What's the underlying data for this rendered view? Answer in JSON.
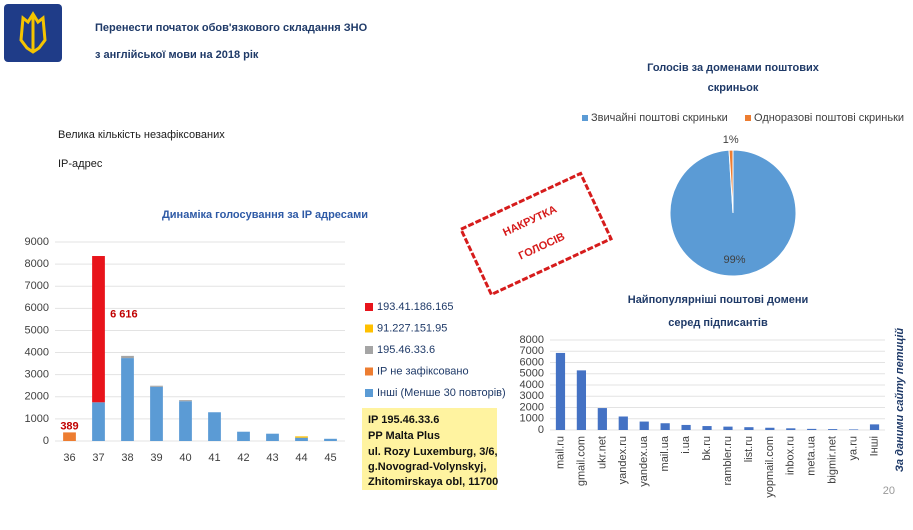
{
  "slide": {
    "title": [
      "Перенести початок обов'язкового складання ЗНО",
      "з англійської мови на 2018 рік"
    ],
    "subtitle": [
      "Велика кількість незафіксованих",
      "IP-адрес"
    ],
    "stamp": [
      "НАКРУТКА",
      "ГОЛОСІВ"
    ],
    "info_box": [
      "IP 195.46.33.6",
      "PP Malta Plus",
      "ul. Rozy Luxemburg, 3/6,",
      "g.Novograd-Volynskyj,",
      "Zhitomirskaya obl, 11700"
    ],
    "side_note": "За даними сайту петицій",
    "page_number": "20"
  },
  "chart_data": [
    {
      "type": "stacked-bar",
      "title": "Динаміка голосування за IP адресами",
      "categories": [
        "36",
        "37",
        "38",
        "39",
        "40",
        "41",
        "42",
        "43",
        "44",
        "45"
      ],
      "series": [
        {
          "name": "Інші (Менше 30 повторів)",
          "color": "#5b9bd5",
          "values": [
            0,
            1750,
            3750,
            2450,
            1800,
            1300,
            420,
            330,
            150,
            100
          ]
        },
        {
          "name": "IP не зафікcовано",
          "color": "#ed7d31",
          "values": [
            389,
            0,
            0,
            0,
            0,
            0,
            0,
            0,
            0,
            0
          ],
          "value_labels": [
            "389",
            null,
            null,
            null,
            null,
            null,
            null,
            null,
            null,
            null
          ]
        },
        {
          "name": "195.46.33.6",
          "color": "#a5a5a5",
          "values": [
            0,
            0,
            100,
            50,
            50,
            0,
            0,
            0,
            0,
            0
          ]
        },
        {
          "name": "91.227.151.95",
          "color": "#ffc000",
          "values": [
            0,
            0,
            0,
            0,
            0,
            0,
            0,
            0,
            60,
            0
          ]
        },
        {
          "name": "193.41.186.165",
          "color": "#e8141b",
          "values": [
            0,
            6616,
            0,
            0,
            0,
            0,
            0,
            0,
            0,
            0
          ],
          "value_labels": [
            null,
            "6 616",
            null,
            null,
            null,
            null,
            null,
            null,
            null,
            null
          ]
        }
      ],
      "ylim": [
        0,
        9000
      ],
      "yticks": [
        0,
        1000,
        2000,
        3000,
        4000,
        5000,
        6000,
        7000,
        8000,
        9000
      ],
      "grid": true
    },
    {
      "type": "pie",
      "title": [
        "Голосів за доменами поштових",
        "скриньок"
      ],
      "categories": [
        "Звичайні поштові скриньки",
        "Одноразові поштові скриньки"
      ],
      "values": [
        99,
        1
      ],
      "value_labels": [
        "99%",
        "1%"
      ],
      "colors": [
        "#5b9bd5",
        "#ed7d31"
      ]
    },
    {
      "type": "bar",
      "title": [
        "Найпопулярніші поштові домени",
        "серед підписантів"
      ],
      "categories": [
        "mail.ru",
        "gmail.com",
        "ukr.net",
        "yandex.ru",
        "yandex.ua",
        "mail.ua",
        "i.ua",
        "bk.ru",
        "rambler.ru",
        "list.ru",
        "yopmail.com",
        "inbox.ru",
        "meta.ua",
        "bigmir.net",
        "ya.ru",
        "Інші"
      ],
      "values": [
        6850,
        5300,
        1950,
        1200,
        750,
        600,
        450,
        350,
        300,
        250,
        200,
        150,
        100,
        80,
        50,
        500
      ],
      "color": "#4472c4",
      "ylim": [
        0,
        8000
      ],
      "yticks": [
        0,
        1000,
        2000,
        3000,
        4000,
        5000,
        6000,
        7000,
        8000
      ],
      "grid": true
    }
  ]
}
